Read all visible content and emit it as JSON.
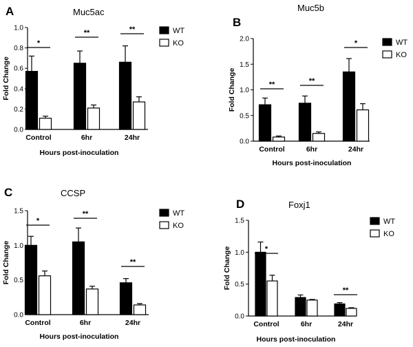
{
  "chart_data": [
    {
      "panel": "A",
      "type": "bar",
      "title": "Muc5ac",
      "xlabel": "Hours post-inoculation",
      "ylabel": "Fold Change",
      "ylim": [
        0,
        1.0
      ],
      "yticks": [
        "0.0",
        "0.2",
        "0.4",
        "0.6",
        "0.8",
        "1.0"
      ],
      "categories": [
        "Control",
        "6hr",
        "24hr"
      ],
      "series": [
        {
          "name": "WT",
          "values": [
            0.57,
            0.65,
            0.66
          ],
          "errors": [
            0.15,
            0.12,
            0.16
          ]
        },
        {
          "name": "KO",
          "values": [
            0.11,
            0.21,
            0.27
          ],
          "errors": [
            0.02,
            0.03,
            0.05
          ]
        }
      ],
      "significance": [
        "*",
        "**",
        "**"
      ],
      "legend_position": "right"
    },
    {
      "panel": "B",
      "type": "bar",
      "title": "Muc5b",
      "xlabel": "Hours post-inoculation",
      "ylabel": "Fold Change",
      "ylim": [
        0,
        2.0
      ],
      "yticks": [
        "0.0",
        "0.5",
        "1.0",
        "1.5",
        "2.0"
      ],
      "categories": [
        "Control",
        "6hr",
        "24hr"
      ],
      "series": [
        {
          "name": "WT",
          "values": [
            0.71,
            0.74,
            1.35
          ],
          "errors": [
            0.13,
            0.14,
            0.26
          ]
        },
        {
          "name": "KO",
          "values": [
            0.08,
            0.15,
            0.61
          ],
          "errors": [
            0.02,
            0.03,
            0.12
          ]
        }
      ],
      "significance": [
        "**",
        "**",
        "*"
      ],
      "legend_position": "right"
    },
    {
      "panel": "C",
      "type": "bar",
      "title": "CCSP",
      "xlabel": "Hours post-inoculation",
      "ylabel": "Fold Change",
      "ylim": [
        0,
        1.5
      ],
      "yticks": [
        "0.0",
        "0.5",
        "1.0",
        "1.5"
      ],
      "categories": [
        "Control",
        "6hr",
        "24hr"
      ],
      "series": [
        {
          "name": "WT",
          "values": [
            1.0,
            1.05,
            0.46
          ],
          "errors": [
            0.13,
            0.2,
            0.06
          ]
        },
        {
          "name": "KO",
          "values": [
            0.56,
            0.37,
            0.14
          ],
          "errors": [
            0.07,
            0.04,
            0.02
          ]
        }
      ],
      "significance": [
        "*",
        "**",
        "**"
      ],
      "legend_position": "right"
    },
    {
      "panel": "D",
      "type": "bar",
      "title": "Foxj1",
      "xlabel": "Hours post-inoculation",
      "ylabel": "Fold Change",
      "ylim": [
        0,
        1.5
      ],
      "yticks": [
        "0.0",
        "0.5",
        "1.0",
        "1.5"
      ],
      "categories": [
        "Control",
        "6hr",
        "24hr"
      ],
      "series": [
        {
          "name": "WT",
          "values": [
            1.0,
            0.29,
            0.19
          ],
          "errors": [
            0.16,
            0.04,
            0.02
          ]
        },
        {
          "name": "KO",
          "values": [
            0.55,
            0.25,
            0.12
          ],
          "errors": [
            0.09,
            0.01,
            0.01
          ]
        }
      ],
      "significance": [
        "*",
        "",
        "**"
      ],
      "legend_position": "right"
    }
  ],
  "colors": {
    "wt": "#000000",
    "ko": "#ffffff",
    "stroke": "#000000"
  }
}
